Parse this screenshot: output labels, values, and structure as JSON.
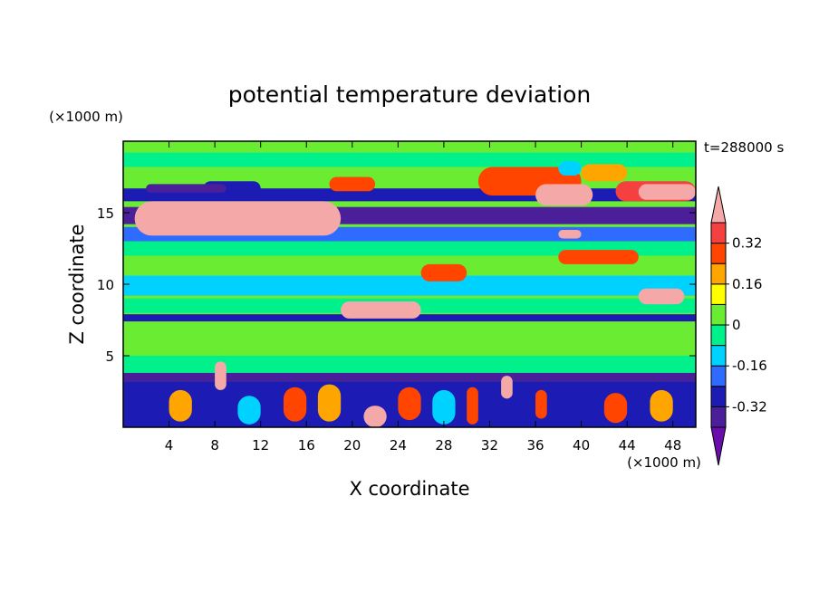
{
  "chart_data": {
    "type": "heatmap",
    "title": "potential temperature deviation",
    "xlabel": "X coordinate",
    "ylabel": "Z coordinate",
    "x_unit": "(×1000 m)",
    "y_unit": "(×1000 m)",
    "time_label": "t=288000 s",
    "xlim": [
      0,
      50
    ],
    "ylim": [
      0,
      20
    ],
    "x_ticks": [
      4,
      8,
      12,
      16,
      20,
      24,
      28,
      32,
      36,
      40,
      44,
      48
    ],
    "y_ticks": [
      5,
      10,
      15
    ],
    "colorbar": {
      "levels": [
        -0.4,
        -0.32,
        -0.24,
        -0.16,
        -0.08,
        0,
        0.08,
        0.16,
        0.24,
        0.32,
        0.4
      ],
      "colors": [
        "#6a0dad",
        "#4b1f9a",
        "#1c1cb4",
        "#2f6bff",
        "#00d2ff",
        "#00f08c",
        "#6aec32",
        "#ffff00",
        "#ffa500",
        "#ff4500",
        "#f54040",
        "#f5a8a8"
      ],
      "tick_labels": [
        "0.32",
        "0.16",
        "0",
        "-0.16",
        "-0.32"
      ],
      "tick_values": [
        0.32,
        0.16,
        0,
        -0.16,
        -0.32
      ],
      "extend": "both"
    },
    "background_value": 0.05,
    "regions": [
      {
        "x": [
          0,
          50
        ],
        "z": [
          19.2,
          20
        ],
        "value": 0.05
      },
      {
        "x": [
          0,
          50
        ],
        "z": [
          18.2,
          19.2
        ],
        "value": -0.05
      },
      {
        "x": [
          0,
          50
        ],
        "z": [
          15.8,
          16.7
        ],
        "value": -0.28
      },
      {
        "x": [
          0,
          50
        ],
        "z": [
          14.2,
          15.4
        ],
        "value": -0.36
      },
      {
        "x": [
          0,
          50
        ],
        "z": [
          13.0,
          14.0
        ],
        "value": -0.2
      },
      {
        "x": [
          0,
          50
        ],
        "z": [
          12.0,
          13.0
        ],
        "value": -0.05
      },
      {
        "x": [
          0,
          50
        ],
        "z": [
          10.8,
          11.6
        ],
        "value": 0.05
      },
      {
        "x": [
          0,
          50
        ],
        "z": [
          9.2,
          10.6
        ],
        "value": -0.12
      },
      {
        "x": [
          0,
          50
        ],
        "z": [
          8.0,
          9.0
        ],
        "value": -0.05
      },
      {
        "x": [
          0,
          50
        ],
        "z": [
          7.4,
          7.9
        ],
        "value": -0.28
      },
      {
        "x": [
          0,
          50
        ],
        "z": [
          5.0,
          7.2
        ],
        "value": 0.05
      },
      {
        "x": [
          0,
          50
        ],
        "z": [
          3.8,
          5.0
        ],
        "value": -0.03
      },
      {
        "x": [
          0,
          50
        ],
        "z": [
          3.2,
          3.8
        ],
        "value": -0.36
      },
      {
        "x": [
          0,
          50
        ],
        "z": [
          0,
          3.2
        ],
        "value": -0.3
      },
      {
        "x": [
          1,
          19
        ],
        "z": [
          13.4,
          15.8
        ],
        "value": 0.45
      },
      {
        "x": [
          18,
          22
        ],
        "z": [
          16.5,
          17.5
        ],
        "value": 0.3
      },
      {
        "x": [
          31,
          40
        ],
        "z": [
          16.2,
          18.2
        ],
        "value": 0.3
      },
      {
        "x": [
          36,
          41
        ],
        "z": [
          15.5,
          17.0
        ],
        "value": 0.45
      },
      {
        "x": [
          43,
          50
        ],
        "z": [
          15.8,
          17.2
        ],
        "value": 0.38
      },
      {
        "x": [
          45,
          50
        ],
        "z": [
          15.9,
          17.0
        ],
        "value": 0.45
      },
      {
        "x": [
          38,
          40
        ],
        "z": [
          17.6,
          18.6
        ],
        "value": -0.16
      },
      {
        "x": [
          40,
          44
        ],
        "z": [
          17.2,
          18.4
        ],
        "value": 0.2
      },
      {
        "x": [
          7,
          12
        ],
        "z": [
          16.2,
          17.2
        ],
        "value": -0.3
      },
      {
        "x": [
          2,
          9
        ],
        "z": [
          16.4,
          17.0
        ],
        "value": -0.36
      },
      {
        "x": [
          45,
          49
        ],
        "z": [
          8.6,
          9.7
        ],
        "value": 0.45
      },
      {
        "x": [
          19,
          26
        ],
        "z": [
          7.6,
          8.8
        ],
        "value": 0.45
      },
      {
        "x": [
          26,
          30
        ],
        "z": [
          10.2,
          11.4
        ],
        "value": 0.3
      },
      {
        "x": [
          38,
          45
        ],
        "z": [
          11.4,
          12.4
        ],
        "value": 0.3
      },
      {
        "x": [
          38,
          40
        ],
        "z": [
          13.2,
          13.8
        ],
        "value": 0.45
      },
      {
        "x": [
          8,
          9
        ],
        "z": [
          2.6,
          4.6
        ],
        "value": 0.45
      },
      {
        "x": [
          14,
          16
        ],
        "z": [
          0.4,
          2.8
        ],
        "value": 0.3
      },
      {
        "x": [
          21,
          23
        ],
        "z": [
          0,
          1.5
        ],
        "value": 0.45
      },
      {
        "x": [
          24,
          26
        ],
        "z": [
          0.5,
          2.8
        ],
        "value": 0.3
      },
      {
        "x": [
          30,
          31
        ],
        "z": [
          0.2,
          2.8
        ],
        "value": 0.3
      },
      {
        "x": [
          33,
          34
        ],
        "z": [
          2.0,
          3.6
        ],
        "value": 0.45
      },
      {
        "x": [
          36,
          37
        ],
        "z": [
          0.6,
          2.6
        ],
        "value": 0.3
      },
      {
        "x": [
          42,
          44
        ],
        "z": [
          0.3,
          2.4
        ],
        "value": 0.3
      },
      {
        "x": [
          4,
          6
        ],
        "z": [
          0.4,
          2.6
        ],
        "value": 0.2
      },
      {
        "x": [
          10,
          12
        ],
        "z": [
          0.2,
          2.2
        ],
        "value": -0.16
      },
      {
        "x": [
          17,
          19
        ],
        "z": [
          0.4,
          3.0
        ],
        "value": 0.2
      },
      {
        "x": [
          27,
          29
        ],
        "z": [
          0.2,
          2.6
        ],
        "value": -0.16
      },
      {
        "x": [
          46,
          48
        ],
        "z": [
          0.4,
          2.6
        ],
        "value": 0.2
      }
    ]
  }
}
